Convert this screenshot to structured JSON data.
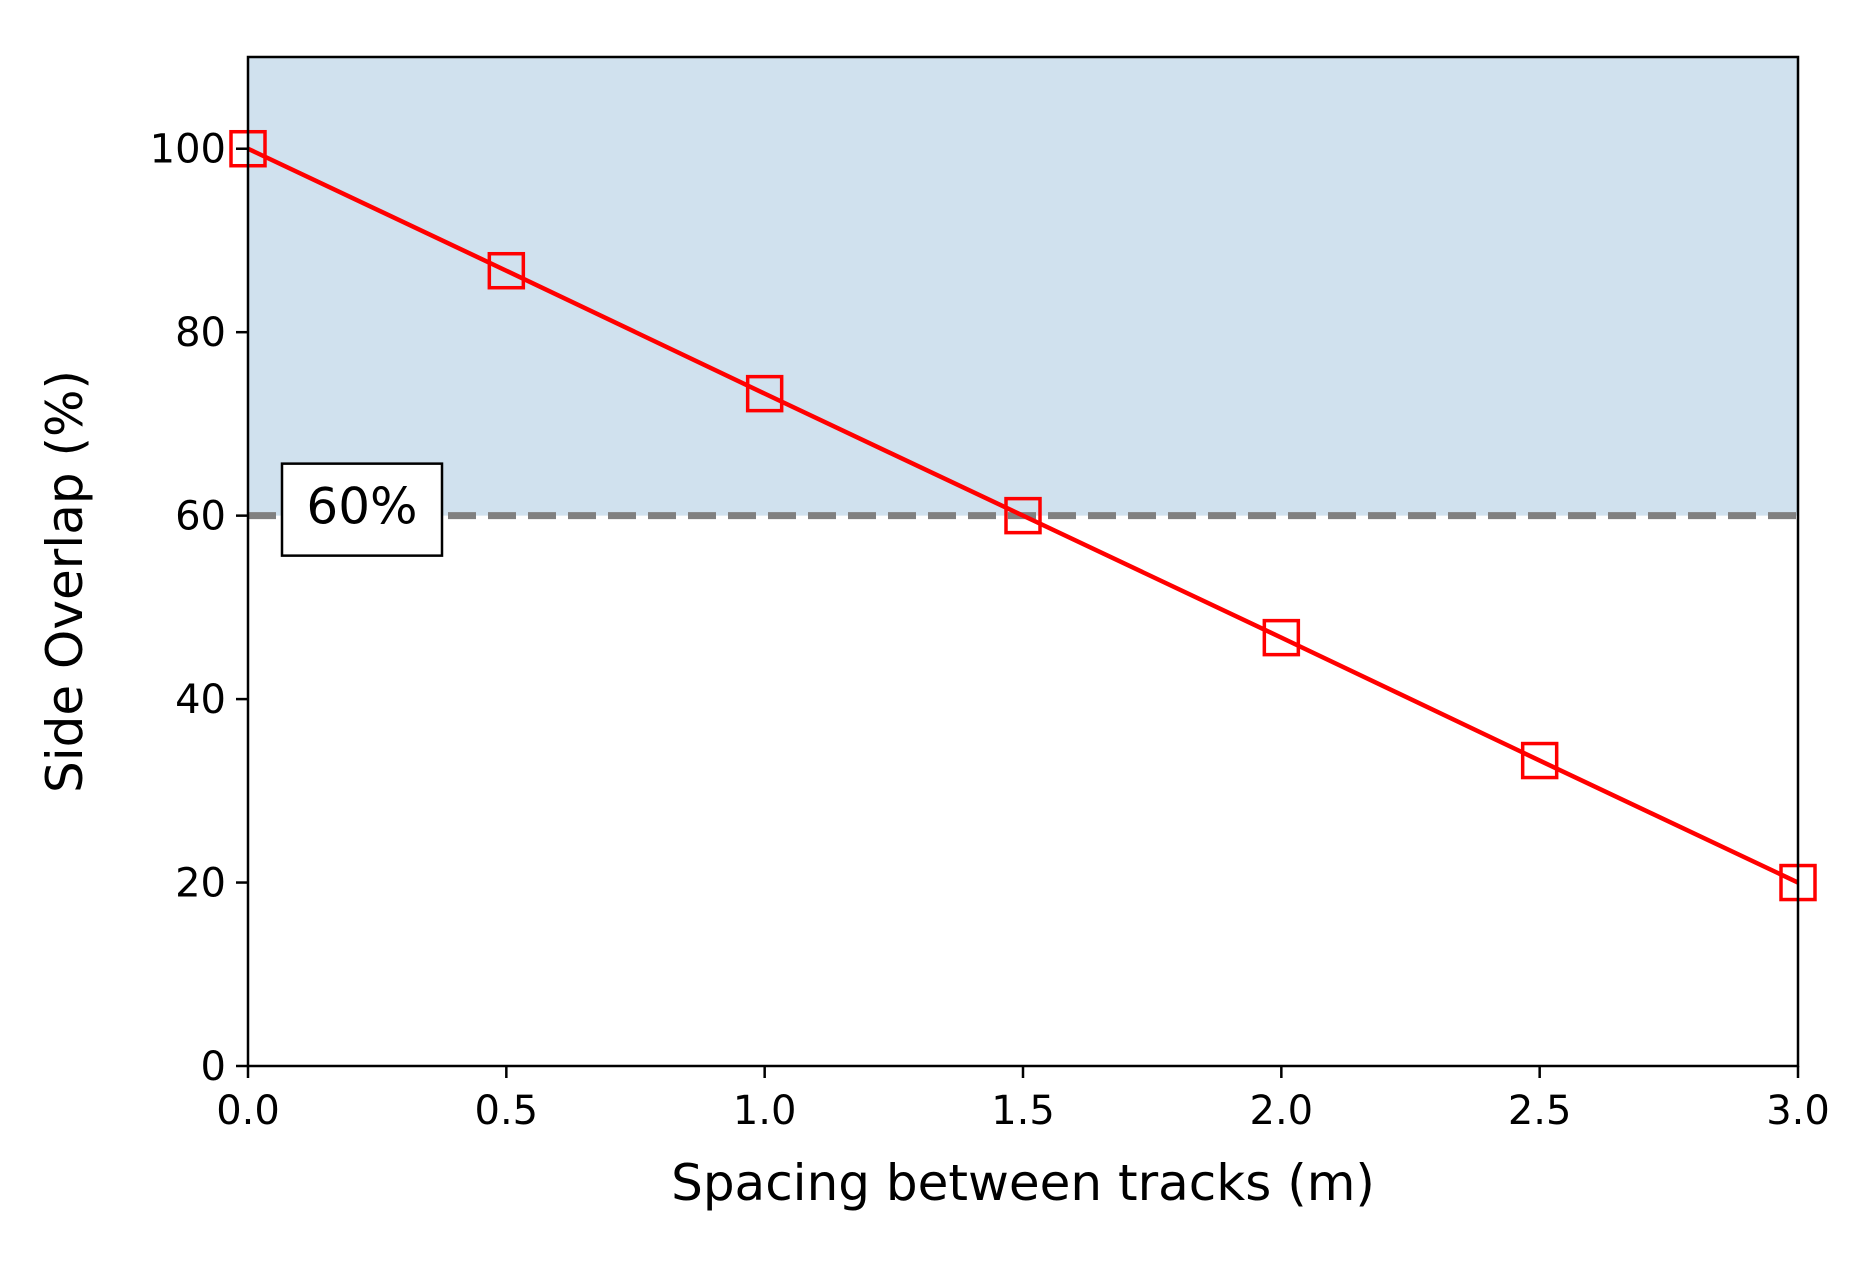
{
  "chart_data": {
    "type": "line",
    "title": "",
    "xlabel": "Spacing between tracks (m)",
    "ylabel": "Side Overlap (%)",
    "xlim": [
      0.0,
      3.0
    ],
    "ylim": [
      0,
      110
    ],
    "xticks": [
      0.0,
      0.5,
      1.0,
      1.5,
      2.0,
      2.5,
      3.0
    ],
    "xtick_labels": [
      "0.0",
      "0.5",
      "1.0",
      "1.5",
      "2.0",
      "2.5",
      "3.0"
    ],
    "yticks": [
      0,
      20,
      40,
      60,
      80,
      100
    ],
    "ytick_labels": [
      "0",
      "20",
      "40",
      "60",
      "80",
      "100"
    ],
    "grid": false,
    "series": [
      {
        "color": "#ff0000",
        "marker": "square-open",
        "x": [
          0.0,
          0.5,
          1.0,
          1.5,
          2.0,
          2.5,
          3.0
        ],
        "y": [
          100,
          86.7,
          73.3,
          60,
          46.7,
          33.3,
          20
        ]
      }
    ],
    "threshold": {
      "y": 60,
      "label": "60%",
      "line_color": "#808080",
      "line_style": "dashed",
      "shaded_region": [
        60,
        110
      ],
      "shade_color": "#d0e1ee"
    }
  }
}
